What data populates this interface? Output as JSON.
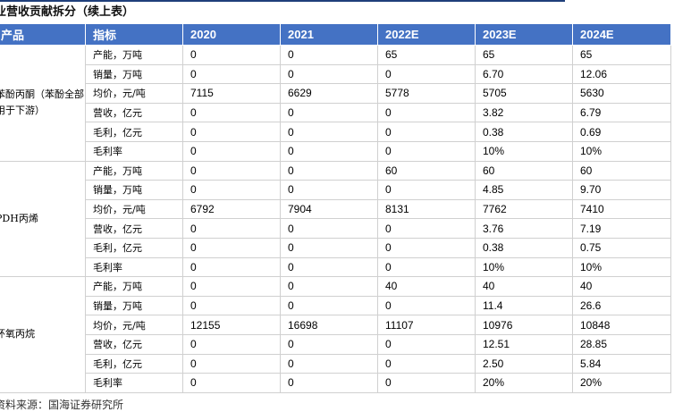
{
  "title": "业营收贡献拆分（续上表）",
  "table": {
    "header": [
      "产品",
      "指标",
      "2020",
      "2021",
      "2022E",
      "2023E",
      "2024E"
    ],
    "groups": [
      {
        "product": "苯酚丙酮（苯酚全部用于下游）",
        "rows": [
          [
            "产能，万吨",
            "0",
            "0",
            "65",
            "65",
            "65"
          ],
          [
            "销量，万吨",
            "0",
            "0",
            "0",
            "6.70",
            "12.06"
          ],
          [
            "均价，元/吨",
            "7115",
            "6629",
            "5778",
            "5705",
            "5630"
          ],
          [
            "营收，亿元",
            "0",
            "0",
            "0",
            "3.82",
            "6.79"
          ],
          [
            "毛利，亿元",
            "0",
            "0",
            "0",
            "0.38",
            "0.69"
          ],
          [
            "毛利率",
            "0",
            "0",
            "0",
            "10%",
            "10%"
          ]
        ]
      },
      {
        "product": "PDH丙烯",
        "rows": [
          [
            "产能，万吨",
            "0",
            "0",
            "60",
            "60",
            "60"
          ],
          [
            "销量，万吨",
            "0",
            "0",
            "0",
            "4.85",
            "9.70"
          ],
          [
            "均价，元/吨",
            "6792",
            "7904",
            "8131",
            "7762",
            "7410"
          ],
          [
            "营收，亿元",
            "0",
            "0",
            "0",
            "3.76",
            "7.19"
          ],
          [
            "毛利，亿元",
            "0",
            "0",
            "0",
            "0.38",
            "0.75"
          ],
          [
            "毛利率",
            "0",
            "0",
            "0",
            "10%",
            "10%"
          ]
        ]
      },
      {
        "product": "环氧丙烷",
        "rows": [
          [
            "产能，万吨",
            "0",
            "0",
            "40",
            "40",
            "40"
          ],
          [
            "销量，万吨",
            "0",
            "0",
            "0",
            "11.4",
            "26.6"
          ],
          [
            "均价，元/吨",
            "12155",
            "16698",
            "11107",
            "10976",
            "10848"
          ],
          [
            "营收，亿元",
            "0",
            "0",
            "0",
            "12.51",
            "28.85"
          ],
          [
            "毛利，亿元",
            "0",
            "0",
            "0",
            "2.50",
            "5.84"
          ],
          [
            "毛利率",
            "0",
            "0",
            "0",
            "20%",
            "20%"
          ]
        ]
      }
    ]
  },
  "source": "资料来源：国海证券研究所"
}
